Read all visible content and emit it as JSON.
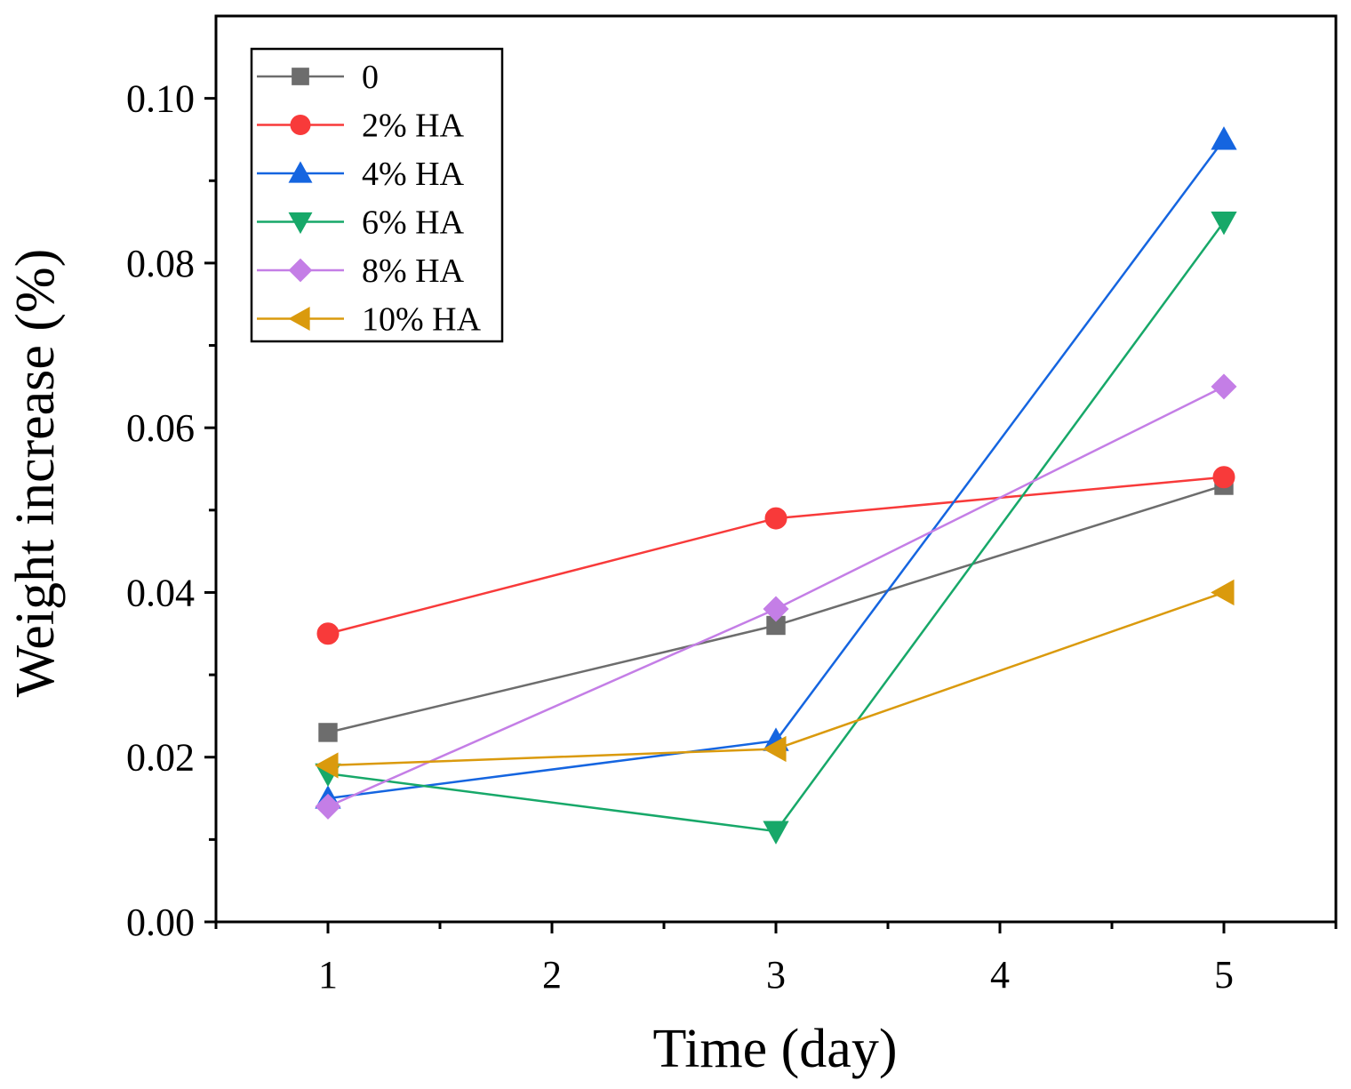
{
  "chart_data": {
    "type": "line",
    "title": "",
    "xlabel": "Time (day)",
    "ylabel": "Weight increase (%)",
    "xlim": [
      0.5,
      5.5
    ],
    "ylim": [
      0,
      0.11
    ],
    "x_ticks": [
      1,
      2,
      3,
      4,
      5
    ],
    "x_tick_labels": [
      "1",
      "2",
      "3",
      "4",
      "5"
    ],
    "x_minor_ticks": [
      0.5,
      1.5,
      2.5,
      3.5,
      4.5,
      5.5
    ],
    "y_ticks": [
      0,
      0.02,
      0.04,
      0.06,
      0.08,
      0.1
    ],
    "y_tick_labels": [
      "0.00",
      "0.02",
      "0.04",
      "0.06",
      "0.08",
      "0.10"
    ],
    "y_minor_ticks": [
      0.01,
      0.03,
      0.05,
      0.07,
      0.09
    ],
    "grid": false,
    "legend_position": "top-left",
    "x": [
      1,
      3,
      5
    ],
    "series": [
      {
        "name": "0",
        "marker": "square",
        "color": "#6d6d6d",
        "values": [
          0.023,
          0.036,
          0.053
        ]
      },
      {
        "name": "2% HA",
        "marker": "circle",
        "color": "#f83a3a",
        "values": [
          0.035,
          0.049,
          0.054
        ]
      },
      {
        "name": "4% HA",
        "marker": "triangle-up",
        "color": "#1565e0",
        "values": [
          0.015,
          0.022,
          0.095
        ]
      },
      {
        "name": "6% HA",
        "marker": "triangle-down",
        "color": "#17a869",
        "values": [
          0.018,
          0.011,
          0.085
        ]
      },
      {
        "name": "8% HA",
        "marker": "diamond",
        "color": "#c47ee6",
        "values": [
          0.014,
          0.038,
          0.065
        ]
      },
      {
        "name": "10% HA",
        "marker": "triangle-left",
        "color": "#da9a0d",
        "values": [
          0.019,
          0.021,
          0.04
        ]
      }
    ]
  }
}
